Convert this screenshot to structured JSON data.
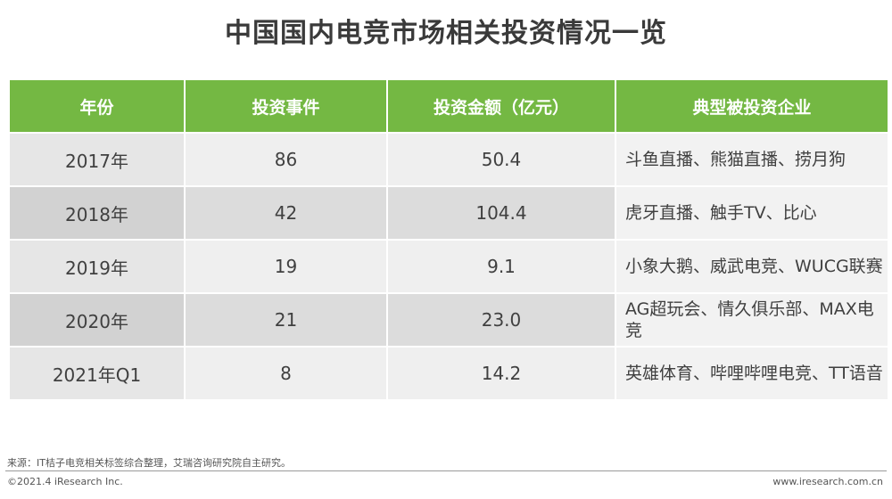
{
  "title": "中国国内电竞市场相关投资情况一览",
  "table": {
    "headers": [
      "年份",
      "投资事件",
      "投资金额（亿元）",
      "典型被投资企业"
    ],
    "rows": [
      {
        "year": "2017年",
        "events": "86",
        "amount": "50.4",
        "companies": "斗鱼直播、熊猫直播、捞月狗"
      },
      {
        "year": "2018年",
        "events": "42",
        "amount": "104.4",
        "companies": "虎牙直播、触手TV、比心"
      },
      {
        "year": "2019年",
        "events": "19",
        "amount": "9.1",
        "companies": "小象大鹅、威武电竞、WUCG联赛"
      },
      {
        "year": "2020年",
        "events": "21",
        "amount": "23.0",
        "companies": "AG超玩会、情久俱乐部、MAX电竞"
      },
      {
        "year": "2021年Q1",
        "events": "8",
        "amount": "14.2",
        "companies": "英雄体育、哔哩哔哩电竞、TT语音"
      }
    ]
  },
  "source": "来源：IT桔子电竞相关标签综合整理，艾瑞咨询研究院自主研究。",
  "footer": {
    "copyright": "©2021.4 iResearch Inc.",
    "website": "www.iresearch.com.cn"
  },
  "colors": {
    "header_green": "#74b843"
  }
}
